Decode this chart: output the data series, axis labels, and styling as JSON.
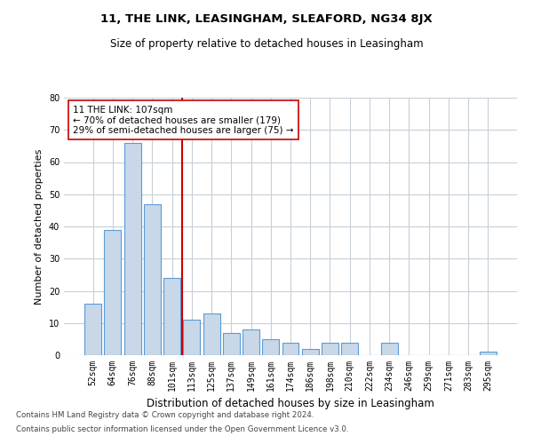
{
  "title1": "11, THE LINK, LEASINGHAM, SLEAFORD, NG34 8JX",
  "title2": "Size of property relative to detached houses in Leasingham",
  "xlabel": "Distribution of detached houses by size in Leasingham",
  "ylabel": "Number of detached properties",
  "categories": [
    "52sqm",
    "64sqm",
    "76sqm",
    "88sqm",
    "101sqm",
    "113sqm",
    "125sqm",
    "137sqm",
    "149sqm",
    "161sqm",
    "174sqm",
    "186sqm",
    "198sqm",
    "210sqm",
    "222sqm",
    "234sqm",
    "246sqm",
    "259sqm",
    "271sqm",
    "283sqm",
    "295sqm"
  ],
  "values": [
    16,
    39,
    66,
    47,
    24,
    11,
    13,
    7,
    8,
    5,
    4,
    2,
    4,
    4,
    0,
    4,
    0,
    0,
    0,
    0,
    1
  ],
  "bar_color": "#c8d8e8",
  "bar_edge_color": "#5b9bd5",
  "vline_x": 4.5,
  "vline_color": "#cc0000",
  "annotation_text": "11 THE LINK: 107sqm\n← 70% of detached houses are smaller (179)\n29% of semi-detached houses are larger (75) →",
  "annotation_box_color": "#ffffff",
  "annotation_box_edge": "#cc0000",
  "ylim": [
    0,
    80
  ],
  "yticks": [
    0,
    10,
    20,
    30,
    40,
    50,
    60,
    70,
    80
  ],
  "grid_color": "#c8cfd8",
  "background_color": "#ffffff",
  "footer1": "Contains HM Land Registry data © Crown copyright and database right 2024.",
  "footer2": "Contains public sector information licensed under the Open Government Licence v3.0."
}
